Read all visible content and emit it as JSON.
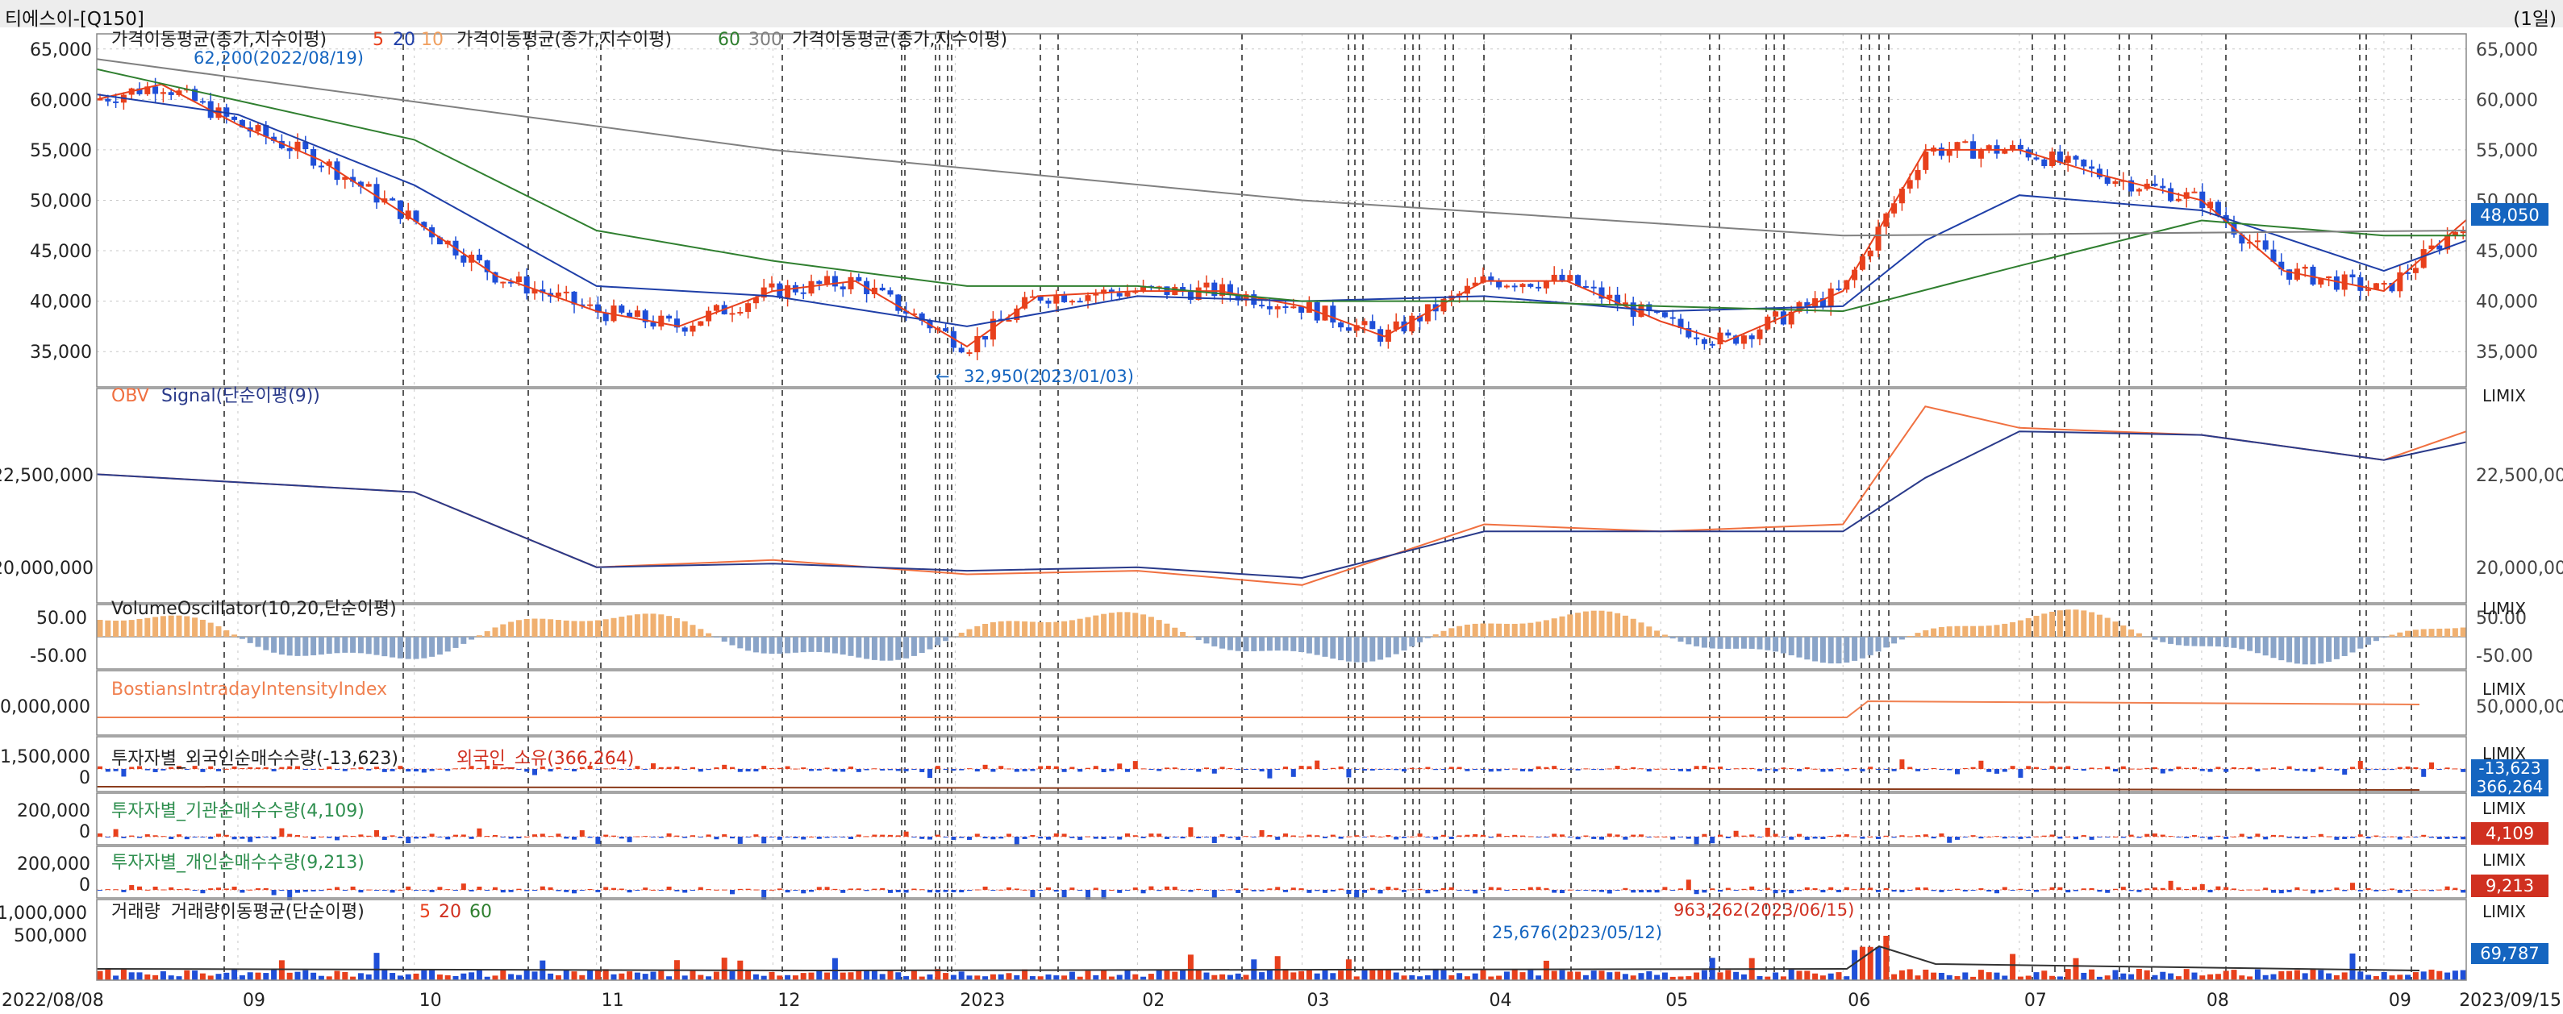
{
  "window": {
    "title": "티에스이-[Q150]",
    "period": "(1일)"
  },
  "colors": {
    "up": "#e8401c",
    "down": "#1f4fd8",
    "ma5": "#e8401c",
    "ma20": "#1f3fa8",
    "ma60": "#2f7f2f",
    "ma300": "#808080",
    "obv": "#f07040",
    "signal": "#2a3a8a",
    "vo_pos": "#f0b070",
    "vo_neg": "#8aa4c8",
    "bii": "#f08050",
    "grid": "#c8c8c8",
    "vline": "#222222",
    "price_tag": "#1565c0",
    "net_tag": "#d03020"
  },
  "panels": {
    "price": {
      "legend": [
        "가격이동평균(종가,지수이평)",
        "5",
        "20",
        "10",
        "가격이동평균(종가,지수이평)",
        "60",
        "300",
        "가격이동평균(종가,지수이평)"
      ],
      "y_ticks": [
        "65,000",
        "60,000",
        "55,000",
        "50,000",
        "45,000",
        "40,000",
        "35,000"
      ],
      "y_right_ticks": [
        "65,000",
        "60,000",
        "55,000",
        "50,000",
        "45,000",
        "40,000",
        "35,000"
      ],
      "annotation_high": "62,200(2022/08/19)",
      "annotation_low": "32,950(2023/01/03)",
      "last_value": "48,050"
    },
    "obv": {
      "legend": [
        "OBV",
        "Signal(단순이평(9))"
      ],
      "y_ticks": [
        "22,500,000",
        "20,000,000"
      ],
      "y_right_ticks": [
        "22,500,000",
        "20,000,000"
      ],
      "corner": "LIMIX"
    },
    "vo": {
      "legend": "VolumeOscillator(10,20,단순이평)",
      "y_ticks": [
        "50.00",
        "-50.00"
      ],
      "y_right_ticks": [
        "50.00",
        "-50.00"
      ],
      "corner": "LIMIX"
    },
    "bii": {
      "legend": "BostiansIntradayIntensityIndex",
      "y_ticks": [
        "00,000,000"
      ],
      "y_right_ticks": [
        "50,000,000"
      ],
      "corner": "LIMIX"
    },
    "foreign": {
      "legend": [
        "투자자별_외국인순매수수량(-13,623)",
        "외국인_소유(366,264)"
      ],
      "y_ticks": [
        "1,500,000",
        "0"
      ],
      "tag1": "-13,623",
      "tag2": "366,264",
      "corner": "LIMIX"
    },
    "inst": {
      "legend": "투자자별_기관순매수수량(4,109)",
      "y_ticks": [
        "200,000",
        "0"
      ],
      "tag": "4,109",
      "corner": "LIMIX"
    },
    "indiv": {
      "legend": "투자자별_개인순매수수량(9,213)",
      "y_ticks": [
        "200,000",
        "0"
      ],
      "tag": "9,213",
      "corner": "LIMIX"
    },
    "volume": {
      "legend": [
        "거래량",
        "거래량이동평균(단순이평)",
        "5",
        "20",
        "60"
      ],
      "y_ticks": [
        "1,000,000",
        "500,000"
      ],
      "annotation_peak": "963,262(2023/06/15)",
      "annotation_low": "25,676(2023/05/12)",
      "last_value": "69,787",
      "corner": "LIMIX"
    }
  },
  "x_axis": {
    "start": "2022/08/08",
    "end": "2023/09/15",
    "labels": [
      "09",
      "10",
      "11",
      "12",
      "2023",
      "02",
      "03",
      "04",
      "05",
      "06",
      "07",
      "08",
      "09"
    ]
  },
  "chart_data": {
    "type": "line",
    "series": [
      {
        "name": "가격이동평균(종가,지수이평) 5",
        "x": [
          "2022/08/08",
          "2022/08/19",
          "2022/09/01",
          "2022/09/15",
          "2022/10/01",
          "2022/10/15",
          "2022/11/01",
          "2022/11/15",
          "2022/12/01",
          "2022/12/15",
          "2023/01/03",
          "2023/01/15",
          "2023/02/01",
          "2023/02/15",
          "2023/03/01",
          "2023/03/15",
          "2023/04/01",
          "2023/04/15",
          "2023/05/01",
          "2023/05/12",
          "2023/06/01",
          "2023/06/15",
          "2023/07/01",
          "2023/07/15",
          "2023/08/01",
          "2023/08/15",
          "2023/09/01",
          "2023/09/15"
        ],
        "values": [
          60000,
          61500,
          57500,
          54000,
          48000,
          42500,
          39000,
          37500,
          41000,
          42000,
          35500,
          40500,
          41000,
          41000,
          39500,
          36500,
          42000,
          42000,
          38000,
          36000,
          41000,
          55000,
          55000,
          52500,
          50000,
          43000,
          41000,
          48050
        ]
      },
      {
        "name": "가격이동평균(종가,지수이평) 20",
        "x": [
          "2022/08/08",
          "2022/09/01",
          "2022/10/01",
          "2022/11/01",
          "2022/12/01",
          "2023/01/03",
          "2023/02/01",
          "2023/03/01",
          "2023/04/01",
          "2023/05/01",
          "2023/06/01",
          "2023/06/15",
          "2023/07/01",
          "2023/08/01",
          "2023/09/01",
          "2023/09/15"
        ],
        "values": [
          60500,
          58500,
          51500,
          41500,
          40500,
          37500,
          40500,
          40000,
          40500,
          39000,
          39500,
          46000,
          50500,
          49000,
          43000,
          46000
        ]
      },
      {
        "name": "가격이동평균(종가,지수이평) 60",
        "x": [
          "2022/08/08",
          "2022/10/01",
          "2022/11/01",
          "2022/12/01",
          "2023/01/03",
          "2023/02/01",
          "2023/03/01",
          "2023/04/01",
          "2023/05/01",
          "2023/06/01",
          "2023/07/01",
          "2023/08/01",
          "2023/09/01",
          "2023/09/15"
        ],
        "values": [
          63000,
          56000,
          47000,
          44000,
          41500,
          41500,
          40000,
          40000,
          39500,
          39000,
          43500,
          48000,
          46500,
          46500
        ]
      },
      {
        "name": "가격이동평균(종가,지수이평) 300",
        "x": [
          "2022/08/08",
          "2022/12/01",
          "2023/03/01",
          "2023/06/01",
          "2023/09/15"
        ],
        "values": [
          64000,
          55000,
          50000,
          46500,
          47000
        ]
      }
    ],
    "high": {
      "value": 62200,
      "date": "2022/08/19"
    },
    "low": {
      "value": 32950,
      "date": "2023/01/03"
    },
    "last": 48050,
    "ylim": [
      31500,
      66500
    ],
    "obv": {
      "x": [
        "2022/08/08",
        "2022/10/01",
        "2022/11/01",
        "2022/12/01",
        "2023/01/03",
        "2023/02/01",
        "2023/03/01",
        "2023/04/01",
        "2023/05/01",
        "2023/06/01",
        "2023/06/15",
        "2023/07/01",
        "2023/08/01",
        "2023/09/01",
        "2023/09/15"
      ],
      "values": [
        22600000,
        22100000,
        20000000,
        20200000,
        19800000,
        19900000,
        19500000,
        21200000,
        21000000,
        21200000,
        24500000,
        23900000,
        23700000,
        23000000,
        23800000
      ],
      "signal": [
        22600000,
        22100000,
        20000000,
        20100000,
        19900000,
        20000000,
        19700000,
        21000000,
        21000000,
        21000000,
        22500000,
        23800000,
        23700000,
        23000000,
        23500000
      ],
      "ylim": [
        19000000,
        25000000
      ]
    },
    "volume_peak": {
      "value": 963262,
      "date": "2023/06/15"
    },
    "volume_low": {
      "value": 25676,
      "date": "2023/05/12"
    },
    "volume_last": 69787,
    "foreign_net_last": -13623,
    "foreign_own_last": 366264,
    "inst_net_last": 4109,
    "indiv_net_last": 9213
  }
}
